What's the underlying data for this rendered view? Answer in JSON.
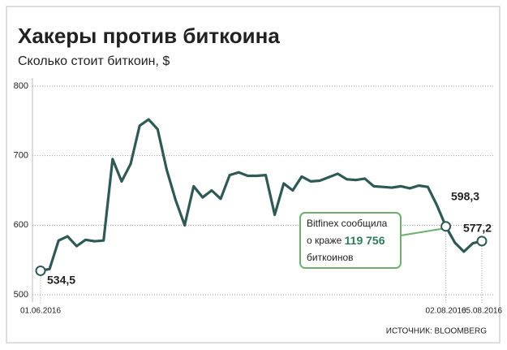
{
  "chart_data": {
    "type": "line",
    "title": "Хакеры против биткоина",
    "subtitle": "Сколько стоит биткоин, $",
    "source": "ИСТОЧНИК: BLOOMBERG",
    "color": "#2f5954",
    "categories": [
      "01.06.2016",
      null,
      null,
      null,
      null,
      null,
      null,
      null,
      null,
      null,
      null,
      null,
      null,
      null,
      null,
      null,
      null,
      null,
      null,
      null,
      null,
      null,
      null,
      null,
      null,
      null,
      null,
      null,
      null,
      null,
      null,
      null,
      null,
      null,
      null,
      null,
      null,
      null,
      null,
      null,
      null,
      null,
      null,
      null,
      null,
      "02.08.2016",
      null,
      null,
      null,
      "05.08.2016"
    ],
    "values": [
      534.5,
      537,
      578,
      584,
      570,
      579,
      577,
      578,
      695,
      663,
      688,
      743,
      752,
      738,
      680,
      636,
      600,
      656,
      640,
      650,
      638,
      672,
      676,
      671,
      671,
      672,
      615,
      660,
      650,
      670,
      663,
      664,
      669,
      674,
      666,
      665,
      667,
      656,
      655,
      654,
      656,
      653,
      657,
      655,
      629,
      598.3,
      575,
      562,
      574,
      577.2
    ],
    "value_labels": [
      "534,5",
      null,
      null,
      null,
      null,
      null,
      null,
      null,
      null,
      null,
      null,
      null,
      null,
      null,
      null,
      null,
      null,
      null,
      null,
      null,
      null,
      null,
      null,
      null,
      null,
      null,
      null,
      null,
      null,
      null,
      null,
      null,
      null,
      null,
      null,
      null,
      null,
      null,
      null,
      null,
      null,
      null,
      null,
      null,
      null,
      "598,3",
      null,
      null,
      null,
      "577,2"
    ],
    "ylim": [
      500,
      800
    ],
    "yticks": [
      500,
      600,
      700,
      800
    ],
    "grid": true,
    "annotation": {
      "line1": "Bitfinex сообщила",
      "line2": "о краже ",
      "line2_bold": "119 756",
      "line3": "биткоинов"
    }
  }
}
